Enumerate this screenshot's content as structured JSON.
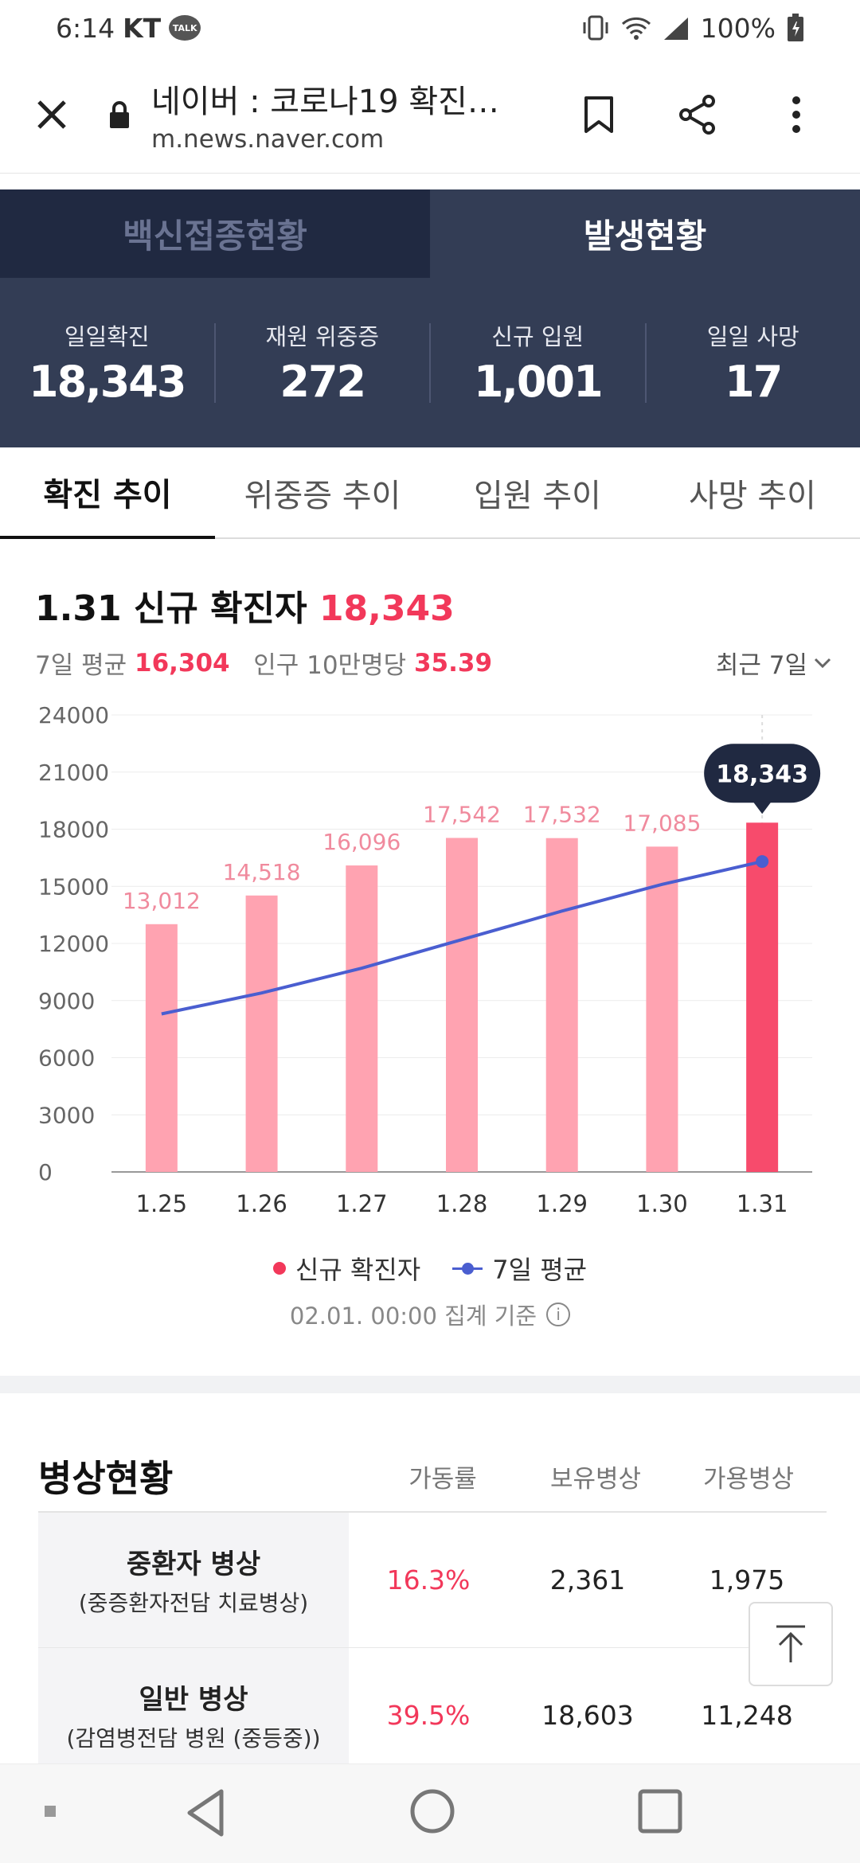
{
  "status_bar": {
    "time": "6:14",
    "carrier": "KT",
    "talk_badge": "TALK",
    "battery": "100%"
  },
  "browser": {
    "title": "네이버 : 코로나19 확진…",
    "url": "m.news.naver.com"
  },
  "top_tabs": [
    {
      "label": "백신접종현황",
      "active": false
    },
    {
      "label": "발생현황",
      "active": true
    }
  ],
  "stats": [
    {
      "label": "일일확진",
      "value": "18,343"
    },
    {
      "label": "재원 위중증",
      "value": "272"
    },
    {
      "label": "신규 입원",
      "value": "1,001"
    },
    {
      "label": "일일 사망",
      "value": "17"
    }
  ],
  "trend_tabs": [
    {
      "label": "확진 추이",
      "active": true
    },
    {
      "label": "위중증 추이",
      "active": false
    },
    {
      "label": "입원 추이",
      "active": false
    },
    {
      "label": "사망 추이",
      "active": false
    }
  ],
  "chart_header": {
    "title_prefix": "1.31 신규 확진자",
    "title_value": "18,343",
    "avg_label": "7일 평균",
    "avg_value": "16,304",
    "per_label": "인구 10만명당",
    "per_value": "35.39",
    "period": "최근 7일"
  },
  "chart_data": {
    "type": "bar",
    "categories": [
      "1.25",
      "1.26",
      "1.27",
      "1.28",
      "1.29",
      "1.30",
      "1.31"
    ],
    "series": [
      {
        "name": "신규 확진자",
        "type": "bar",
        "values": [
          13012,
          14518,
          16096,
          17542,
          17532,
          17085,
          18343
        ]
      },
      {
        "name": "7일 평균",
        "type": "line",
        "values": [
          8300,
          9400,
          10700,
          12200,
          13700,
          15100,
          16304
        ]
      }
    ],
    "value_labels": [
      "13,012",
      "14,518",
      "16,096",
      "17,542",
      "17,532",
      "17,085",
      "18,343"
    ],
    "y_ticks": [
      0,
      3000,
      6000,
      9000,
      12000,
      15000,
      18000,
      21000,
      24000
    ],
    "ylim": [
      0,
      24000
    ],
    "highlight_index": 6,
    "tooltip": "18,343",
    "colors": {
      "bar": "#ffa3b1",
      "bar_highlight": "#f74b6c",
      "label": "#f08a9d",
      "line": "#4a5ed0"
    },
    "grid": true,
    "legend_position": "bottom"
  },
  "basis_text": "02.01. 00:00 집계 기준",
  "beds": {
    "title": "병상현황",
    "columns": [
      "가동률",
      "보유병상",
      "가용병상"
    ],
    "rows": [
      {
        "name": "중환자 병상",
        "desc": "(중증환자전담 치료병상)",
        "rate": "16.3%",
        "owned": "2,361",
        "available": "1,975"
      },
      {
        "name": "일반 병상",
        "desc": "(감염병전담 병원 (중등중))",
        "rate": "39.5%",
        "owned": "18,603",
        "available": "11,248"
      }
    ]
  }
}
